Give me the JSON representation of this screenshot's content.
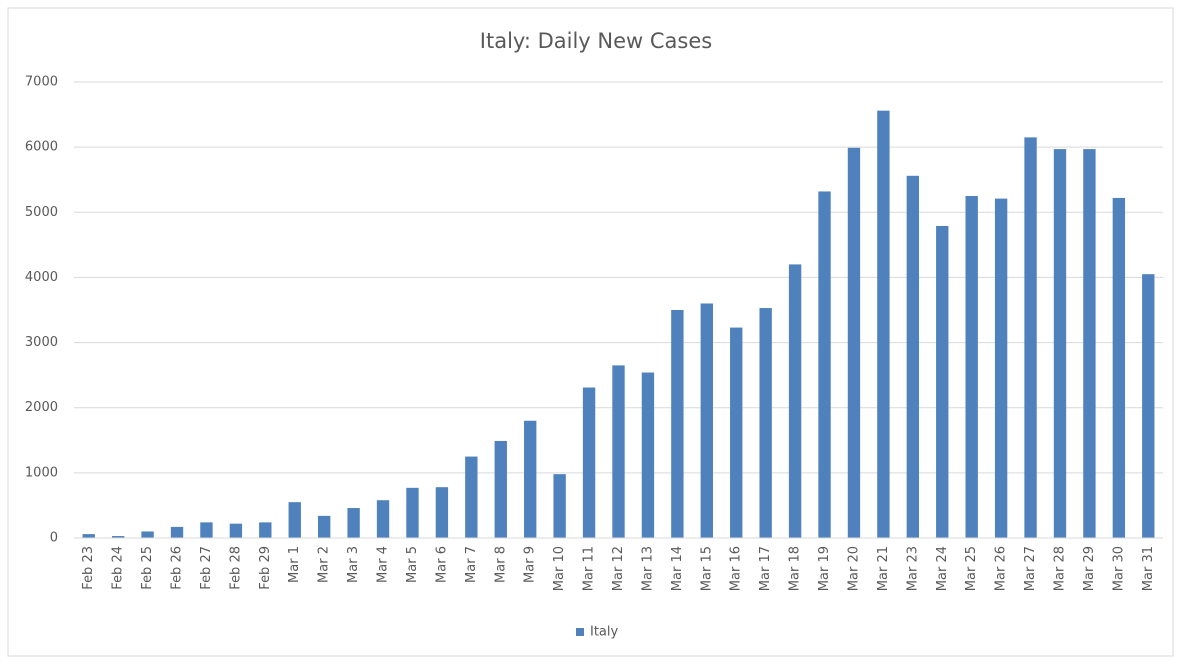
{
  "chart_data": {
    "type": "bar",
    "title": "Italy: Daily New Cases",
    "categories": [
      "Feb 23",
      "Feb 24",
      "Feb 25",
      "Feb 26",
      "Feb 27",
      "Feb 28",
      "Feb 29",
      "Mar 1",
      "Mar 2",
      "Mar 3",
      "Mar 4",
      "Mar 5",
      "Mar 6",
      "Mar 7",
      "Mar 8",
      "Mar 9",
      "Mar 10",
      "Mar 11",
      "Mar 12",
      "Mar 13",
      "Mar 14",
      "Mar 15",
      "Mar 16",
      "Mar 17",
      "Mar 18",
      "Mar 19",
      "Mar 20",
      "Mar 21",
      "Mar 23",
      "Mar 24",
      "Mar 25",
      "Mar 26",
      "Mar 27",
      "Mar 28",
      "Mar 29",
      "Mar 30",
      "Mar 31"
    ],
    "series": [
      {
        "name": "Italy",
        "color": "#4f81bd",
        "values": [
          60,
          30,
          100,
          170,
          240,
          220,
          240,
          550,
          340,
          460,
          580,
          770,
          780,
          1250,
          1490,
          1800,
          980,
          2310,
          2650,
          2540,
          3500,
          3600,
          3230,
          3530,
          4200,
          5320,
          5990,
          6560,
          5560,
          4790,
          5250,
          5210,
          6150,
          5970,
          5970,
          5220,
          4050
        ]
      }
    ],
    "ylim": [
      0,
      7000
    ],
    "yticks": [
      0,
      1000,
      2000,
      3000,
      4000,
      5000,
      6000,
      7000
    ],
    "grid": true,
    "legend": "bottom"
  }
}
